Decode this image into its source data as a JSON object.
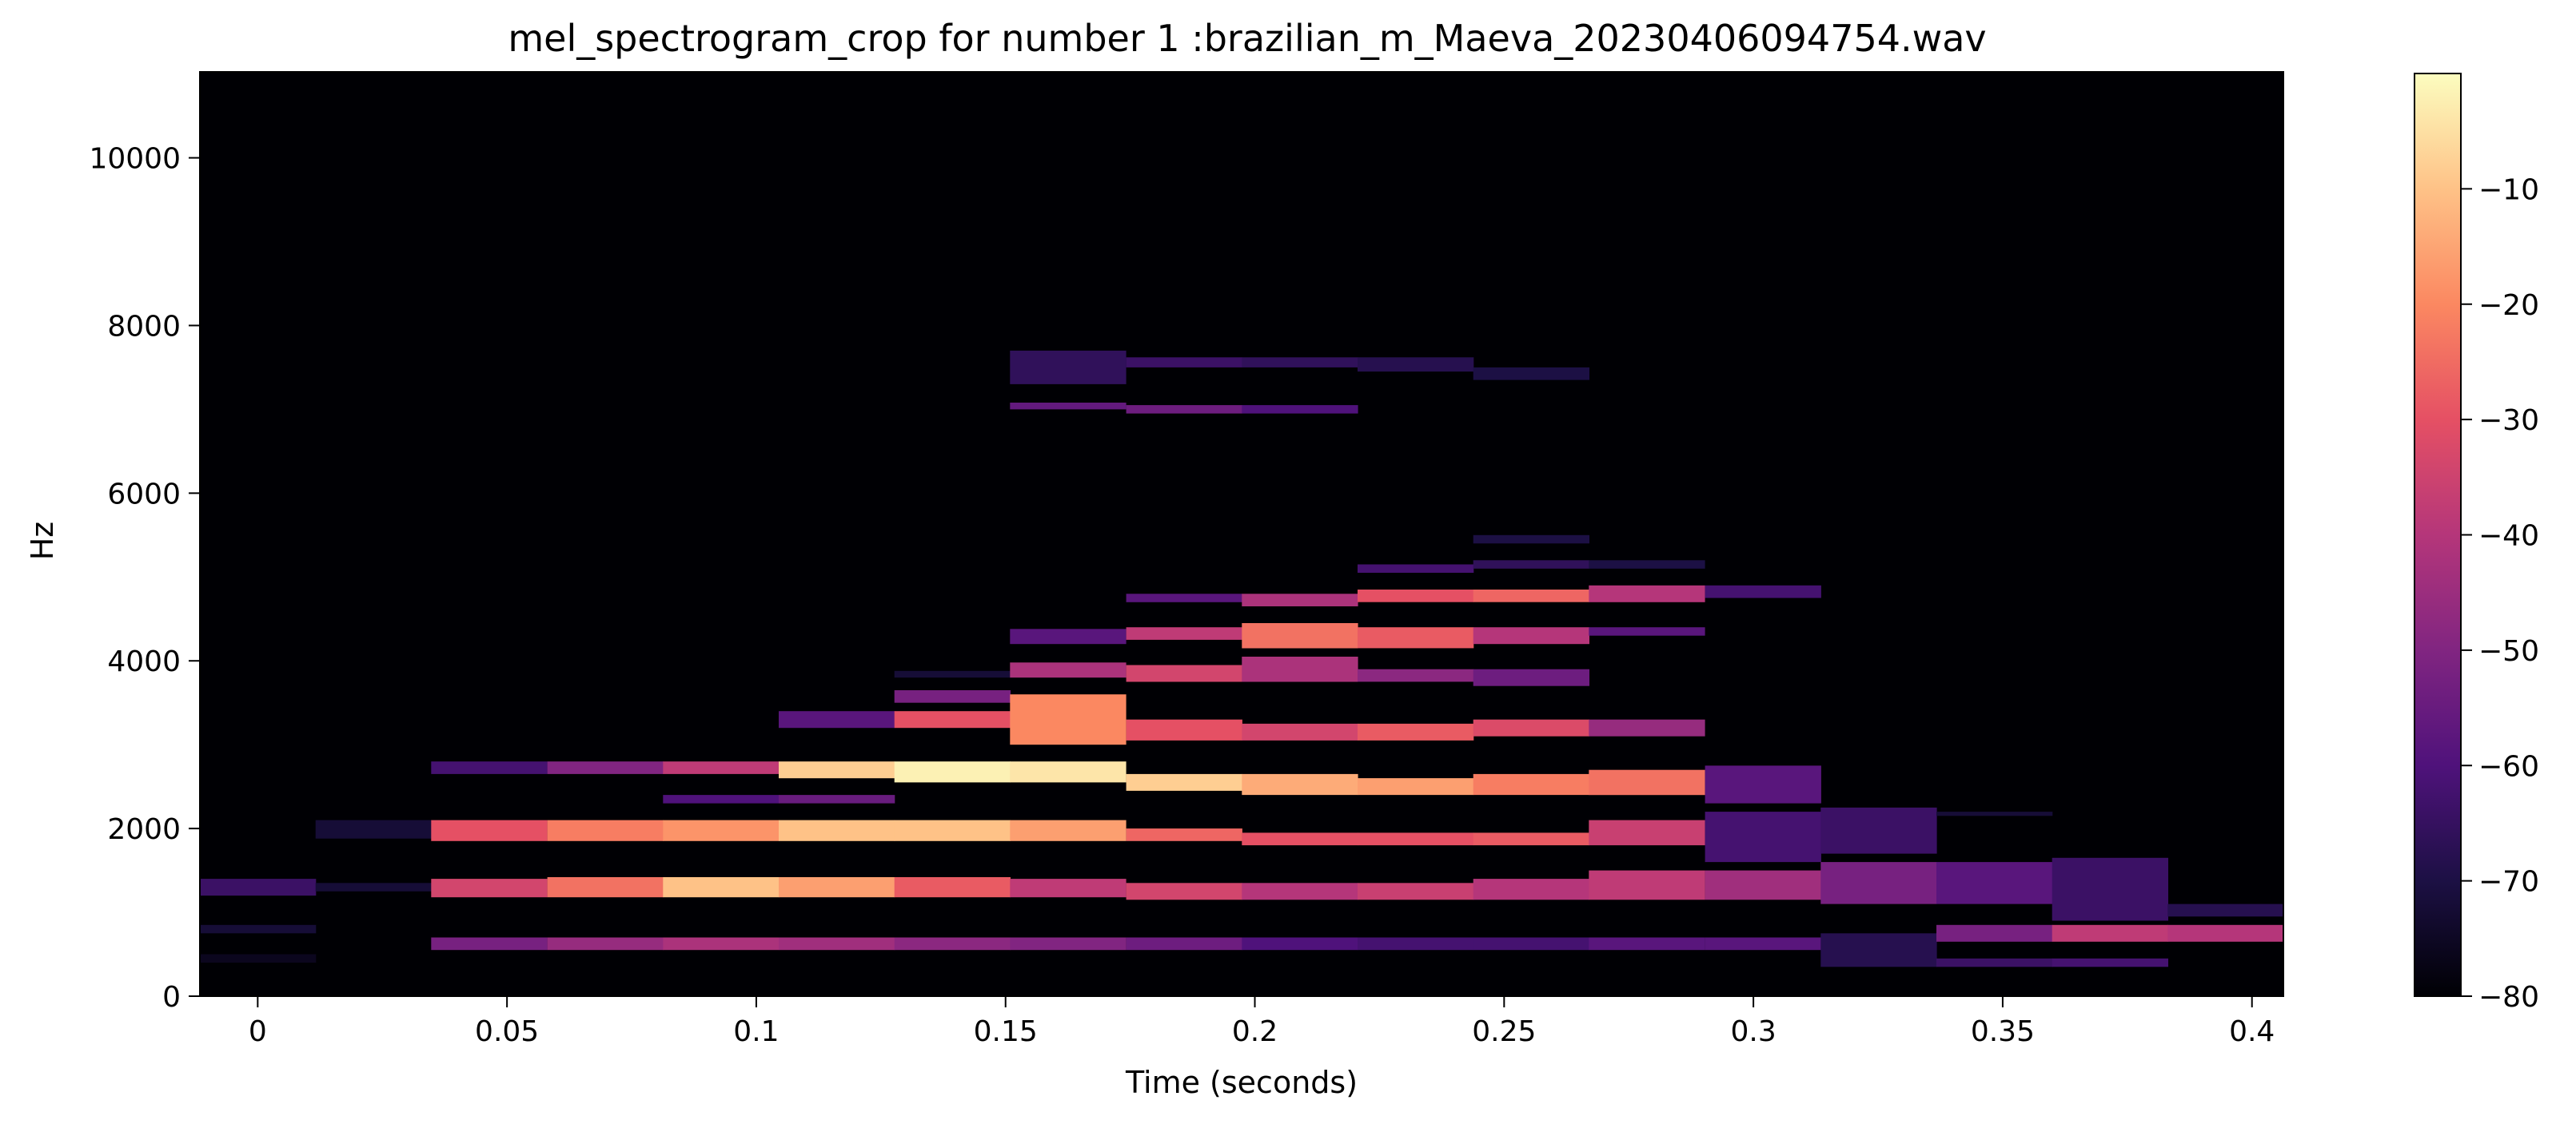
{
  "chart_data": {
    "type": "heatmap",
    "title": "mel_spectrogram_crop for number 1 :brazilian_m_Maeva_20230406094754.wav",
    "xlabel": "Time (seconds)",
    "ylabel": "Hz",
    "xlim": [
      -0.0116,
      0.4063
    ],
    "ylim": [
      0,
      11025
    ],
    "x_ticks": [
      0,
      0.05,
      0.1,
      0.15,
      0.2,
      0.25,
      0.3,
      0.35,
      0.4
    ],
    "x_tick_labels": [
      "0",
      "0.05",
      "0.1",
      "0.15",
      "0.2",
      "0.25",
      "0.3",
      "0.35",
      "0.4"
    ],
    "y_ticks": [
      0,
      2000,
      4000,
      6000,
      8000,
      10000
    ],
    "y_tick_labels": [
      "0",
      "2000",
      "4000",
      "6000",
      "8000",
      "10000"
    ],
    "colorbar": {
      "colormap": "magma",
      "range": [
        -80,
        0
      ],
      "ticks": [
        -10,
        -20,
        -30,
        -40,
        -50,
        -60,
        -70,
        -80
      ],
      "tick_labels": [
        "−10",
        "−20",
        "−30",
        "−40",
        "−50",
        "−60",
        "−70",
        "−80"
      ]
    },
    "frame_times": [
      0.0,
      0.0232,
      0.0464,
      0.0697,
      0.0929,
      0.1161,
      0.1393,
      0.1625,
      0.1858,
      0.209,
      0.2322,
      0.2554,
      0.2786,
      0.3019,
      0.3251,
      0.3483,
      0.3715,
      0.3947
    ],
    "frame_bands": [
      [
        [
          1200,
          1400,
          -64
        ],
        [
          750,
          850,
          -72
        ],
        [
          400,
          500,
          -76
        ],
        [
          0,
          11025,
          -80
        ]
      ],
      [
        [
          1250,
          1350,
          -72
        ],
        [
          1880,
          2100,
          -72
        ],
        [
          0,
          11025,
          -80
        ]
      ],
      [
        [
          550,
          700,
          -52
        ],
        [
          1180,
          1400,
          -34
        ],
        [
          1850,
          2100,
          -30
        ],
        [
          2650,
          2800,
          -62
        ],
        [
          0,
          11025,
          -80
        ]
      ],
      [
        [
          550,
          700,
          -46
        ],
        [
          1180,
          1420,
          -24
        ],
        [
          1850,
          2100,
          -22
        ],
        [
          2650,
          2800,
          -50
        ],
        [
          0,
          11025,
          -80
        ]
      ],
      [
        [
          550,
          700,
          -42
        ],
        [
          1180,
          1420,
          -10
        ],
        [
          1850,
          2100,
          -18
        ],
        [
          2650,
          2800,
          -38
        ],
        [
          2300,
          2400,
          -60
        ],
        [
          0,
          11025,
          -80
        ]
      ],
      [
        [
          550,
          700,
          -44
        ],
        [
          1180,
          1420,
          -16
        ],
        [
          1850,
          2100,
          -10
        ],
        [
          2600,
          2800,
          -8
        ],
        [
          3200,
          3400,
          -58
        ],
        [
          2300,
          2400,
          -55
        ],
        [
          0,
          11025,
          -80
        ]
      ],
      [
        [
          550,
          700,
          -48
        ],
        [
          1180,
          1420,
          -28
        ],
        [
          1850,
          2100,
          -10
        ],
        [
          2550,
          2800,
          -2
        ],
        [
          3200,
          3400,
          -30
        ],
        [
          3500,
          3650,
          -52
        ],
        [
          3800,
          3880,
          -72
        ],
        [
          0,
          11025,
          -80
        ]
      ],
      [
        [
          550,
          700,
          -50
        ],
        [
          1180,
          1400,
          -38
        ],
        [
          1850,
          2100,
          -16
        ],
        [
          2550,
          2800,
          -4
        ],
        [
          3000,
          3600,
          -20
        ],
        [
          3800,
          3980,
          -42
        ],
        [
          4200,
          4380,
          -58
        ],
        [
          7000,
          7080,
          -56
        ],
        [
          7300,
          7700,
          -66
        ],
        [
          0,
          11025,
          -80
        ]
      ],
      [
        [
          550,
          700,
          -54
        ],
        [
          1150,
          1350,
          -34
        ],
        [
          1850,
          2000,
          -26
        ],
        [
          2450,
          2650,
          -8
        ],
        [
          3050,
          3300,
          -30
        ],
        [
          3750,
          3950,
          -34
        ],
        [
          4250,
          4400,
          -38
        ],
        [
          4700,
          4800,
          -58
        ],
        [
          6950,
          7050,
          -54
        ],
        [
          7500,
          7620,
          -64
        ],
        [
          0,
          11025,
          -80
        ]
      ],
      [
        [
          550,
          700,
          -60
        ],
        [
          1150,
          1350,
          -40
        ],
        [
          1800,
          1950,
          -30
        ],
        [
          2400,
          2650,
          -14
        ],
        [
          3050,
          3250,
          -34
        ],
        [
          3750,
          4050,
          -42
        ],
        [
          4150,
          4450,
          -24
        ],
        [
          4650,
          4800,
          -42
        ],
        [
          6950,
          7050,
          -60
        ],
        [
          7500,
          7620,
          -66
        ],
        [
          0,
          11025,
          -80
        ]
      ],
      [
        [
          550,
          700,
          -62
        ],
        [
          1150,
          1350,
          -36
        ],
        [
          1800,
          1950,
          -30
        ],
        [
          2400,
          2600,
          -16
        ],
        [
          3050,
          3250,
          -28
        ],
        [
          3750,
          3900,
          -48
        ],
        [
          4150,
          4400,
          -28
        ],
        [
          4700,
          4850,
          -30
        ],
        [
          5050,
          5150,
          -62
        ],
        [
          7450,
          7620,
          -68
        ],
        [
          0,
          11025,
          -80
        ]
      ],
      [
        [
          550,
          700,
          -62
        ],
        [
          1150,
          1400,
          -40
        ],
        [
          1800,
          1950,
          -28
        ],
        [
          2400,
          2650,
          -22
        ],
        [
          3100,
          3300,
          -32
        ],
        [
          3700,
          3900,
          -54
        ],
        [
          4200,
          4400,
          -40
        ],
        [
          4700,
          4850,
          -26
        ],
        [
          5100,
          5200,
          -66
        ],
        [
          5400,
          5500,
          -70
        ],
        [
          7350,
          7500,
          -70
        ],
        [
          0,
          11025,
          -80
        ]
      ],
      [
        [
          550,
          700,
          -58
        ],
        [
          1150,
          1500,
          -38
        ],
        [
          1800,
          2100,
          -36
        ],
        [
          2400,
          2700,
          -24
        ],
        [
          3100,
          3300,
          -46
        ],
        [
          4300,
          4400,
          -58
        ],
        [
          4700,
          4900,
          -40
        ],
        [
          5100,
          5200,
          -70
        ],
        [
          0,
          11025,
          -80
        ]
      ],
      [
        [
          550,
          700,
          -58
        ],
        [
          1150,
          1500,
          -44
        ],
        [
          1600,
          2200,
          -62
        ],
        [
          2300,
          2750,
          -58
        ],
        [
          4750,
          4900,
          -62
        ],
        [
          0,
          11025,
          -80
        ]
      ],
      [
        [
          350,
          750,
          -68
        ],
        [
          1100,
          1600,
          -52
        ],
        [
          1700,
          2250,
          -64
        ],
        [
          0,
          11025,
          -80
        ]
      ],
      [
        [
          650,
          850,
          -52
        ],
        [
          350,
          450,
          -64
        ],
        [
          1100,
          1600,
          -58
        ],
        [
          2150,
          2200,
          -72
        ],
        [
          0,
          11025,
          -80
        ]
      ],
      [
        [
          650,
          850,
          -38
        ],
        [
          350,
          450,
          -62
        ],
        [
          900,
          1650,
          -64
        ],
        [
          0,
          11025,
          -80
        ]
      ],
      [
        [
          650,
          850,
          -40
        ],
        [
          950,
          1100,
          -68
        ],
        [
          0,
          11025,
          -80
        ]
      ]
    ]
  }
}
